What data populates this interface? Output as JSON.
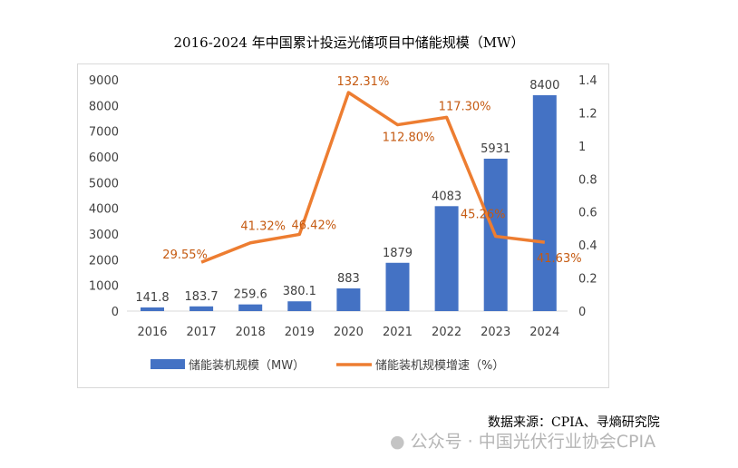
{
  "chart_data": {
    "type": "bar+line",
    "title": "2016-2024 年中国累计投运光储项目中储能规模（MW）",
    "categories": [
      "2016",
      "2017",
      "2018",
      "2019",
      "2020",
      "2021",
      "2022",
      "2023",
      "2024"
    ],
    "series": [
      {
        "name": "储能装机规模（MW）",
        "type": "bar",
        "axis": "left",
        "color": "#4472C4",
        "values": [
          141.8,
          183.7,
          259.6,
          380.1,
          883,
          1879,
          4083,
          5931,
          8400
        ],
        "labels": [
          "141.8",
          "183.7",
          "259.6",
          "380.1",
          "883",
          "1879",
          "4083",
          "5931",
          "8400"
        ]
      },
      {
        "name": "储能装机规模增速（%）",
        "type": "line",
        "axis": "right",
        "color": "#ED7D31",
        "values": [
          null,
          0.2955,
          0.4132,
          0.4642,
          1.3231,
          1.128,
          1.173,
          0.4526,
          0.4163
        ],
        "labels": [
          "",
          "29.55%",
          "41.32%",
          "46.42%",
          "132.31%",
          "112.80%",
          "117.30%",
          "45.26%",
          "41.63%"
        ]
      }
    ],
    "y_left": {
      "ylim": [
        0,
        9000
      ],
      "ticks": [
        "0",
        "1000",
        "2000",
        "3000",
        "4000",
        "5000",
        "6000",
        "7000",
        "8000",
        "9000"
      ]
    },
    "y_right": {
      "ylim": [
        0,
        1.4
      ],
      "ticks": [
        "0",
        "0.2",
        "0.4",
        "0.6",
        "0.8",
        "1",
        "1.2",
        "1.4"
      ]
    },
    "legend_position": "bottom",
    "grid": false
  },
  "source": "数据来源：CPIA、寻熵研究院",
  "watermark": "公众号 · 中国光伏行业协会CPIA"
}
